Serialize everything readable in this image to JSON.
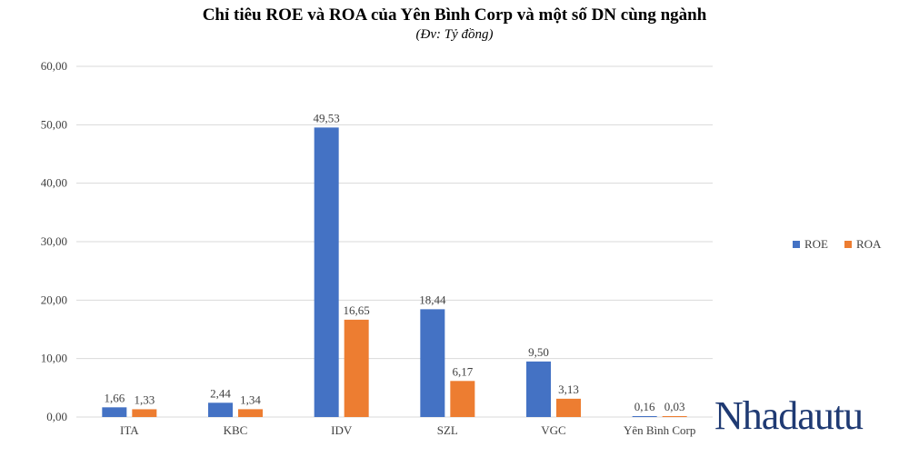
{
  "colors": {
    "roe": "#4472C4",
    "roa": "#ED7D31",
    "grid": "#d9d9d9",
    "brand": "#1f3a73"
  },
  "watermark": "Nhadautu",
  "chart_data": {
    "type": "bar",
    "title": "Chỉ tiêu ROE và ROA của Yên Bình Corp và một số DN cùng ngành",
    "subtitle": "(Đv: Tỷ đồng)",
    "categories": [
      "ITA",
      "KBC",
      "IDV",
      "SZL",
      "VGC",
      "Yên Bình Corp"
    ],
    "series": [
      {
        "name": "ROE",
        "values": [
          1.66,
          2.44,
          49.53,
          18.44,
          9.5,
          0.16
        ],
        "labels": [
          "1,66",
          "2,44",
          "49,53",
          "18,44",
          "9,50",
          "0,16"
        ]
      },
      {
        "name": "ROA",
        "values": [
          1.33,
          1.34,
          16.65,
          6.17,
          3.13,
          0.03
        ],
        "labels": [
          "1,33",
          "1,34",
          "16,65",
          "6,17",
          "3,13",
          "0,03"
        ]
      }
    ],
    "yticks": [
      0,
      10,
      20,
      30,
      40,
      50,
      60
    ],
    "ytick_labels": [
      "0,00",
      "10,00",
      "20,00",
      "30,00",
      "40,00",
      "50,00",
      "60,00"
    ],
    "ylim": [
      0,
      60
    ],
    "grid": true,
    "legend": "right"
  }
}
